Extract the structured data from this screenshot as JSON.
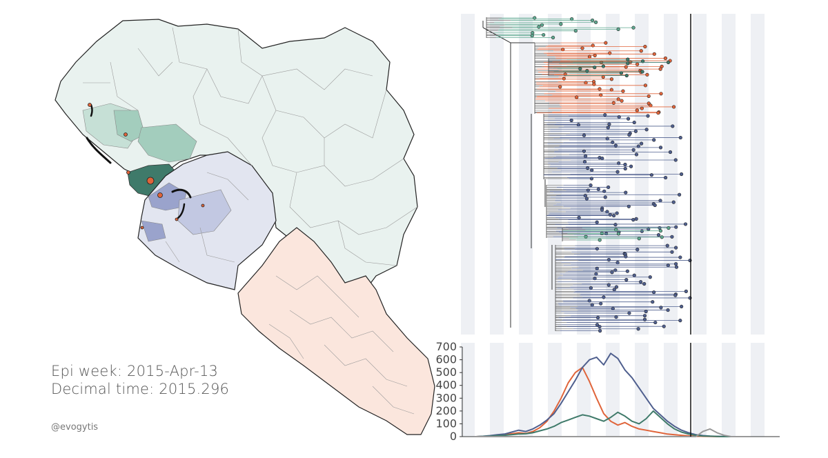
{
  "annotations": {
    "epi_week": "Epi week: 2015-Apr-13",
    "decimal_time": "Decimal time: 2015.296",
    "credit": "@evogytis"
  },
  "colors": {
    "guinea": "#5fa890",
    "sierra_leone": "#4f5f8e",
    "liberia": "#e0643a",
    "guinea_fill": "#e9f2ef",
    "sierra_leone_fill": "#e2e5f0",
    "liberia_fill": "#fbe6dd"
  },
  "chart_data": {
    "type": "line",
    "current_time_marker": 2015.296,
    "yticks": [
      0,
      100,
      200,
      300,
      400,
      500,
      600,
      700
    ],
    "ylim": [
      0,
      700
    ],
    "series": [
      {
        "color": "#e0643a",
        "values": [
          0,
          2,
          5,
          10,
          15,
          22,
          30,
          25,
          40,
          70,
          120,
          200,
          300,
          420,
          500,
          540,
          430,
          300,
          180,
          120,
          90,
          110,
          80,
          60,
          50,
          40,
          30,
          20,
          15,
          10,
          6,
          4,
          2,
          1,
          0,
          0,
          0,
          0
        ]
      },
      {
        "color": "#4f5f8e",
        "values": [
          0,
          3,
          8,
          15,
          20,
          35,
          50,
          40,
          60,
          90,
          130,
          180,
          260,
          350,
          440,
          540,
          600,
          620,
          560,
          650,
          610,
          520,
          460,
          380,
          300,
          220,
          170,
          120,
          80,
          50,
          30,
          15,
          8,
          4,
          2,
          1,
          0,
          0
        ]
      },
      {
        "color": "#3f7a6a",
        "values": [
          0,
          2,
          4,
          8,
          10,
          15,
          20,
          22,
          30,
          45,
          60,
          80,
          110,
          130,
          150,
          170,
          160,
          140,
          120,
          150,
          190,
          160,
          120,
          100,
          140,
          200,
          150,
          100,
          60,
          35,
          20,
          10,
          5,
          3,
          1,
          0,
          0,
          0
        ]
      },
      {
        "color": "#999999",
        "values": [
          0,
          0,
          0,
          0,
          0,
          0,
          0,
          0,
          0,
          0,
          0,
          0,
          0,
          0,
          0,
          0,
          0,
          0,
          0,
          0,
          0,
          0,
          0,
          0,
          0,
          0,
          0,
          0,
          0,
          0,
          0,
          0,
          40,
          60,
          30,
          10,
          0,
          0
        ]
      }
    ]
  }
}
